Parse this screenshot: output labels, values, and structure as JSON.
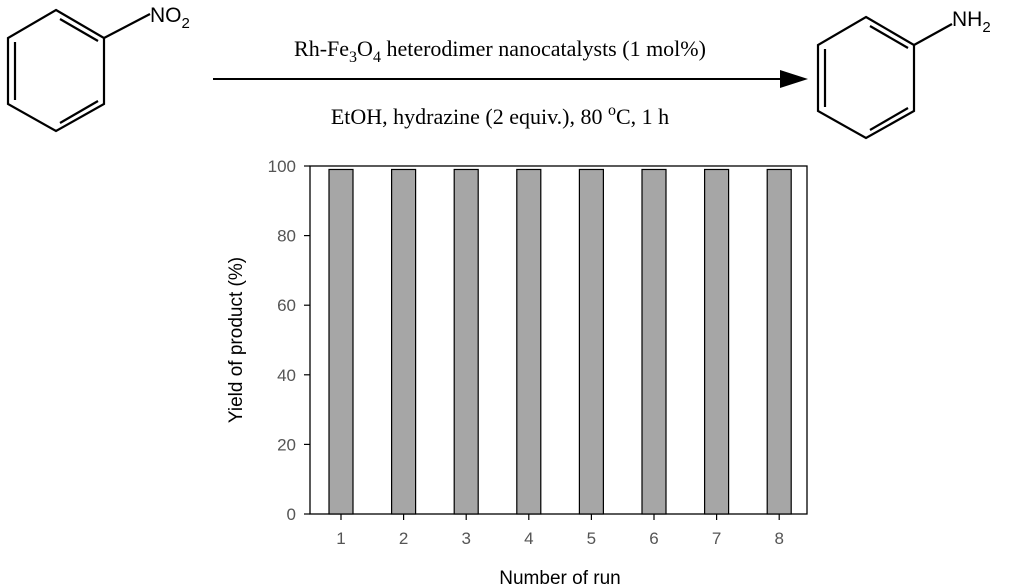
{
  "scheme": {
    "reactant": {
      "group_main": "NO",
      "group_sub": "2"
    },
    "product": {
      "group_main": "NH",
      "group_sub": "2"
    },
    "conditions_top": {
      "part1": "Rh-Fe",
      "sub1": "3",
      "part2": "O",
      "sub2": "4",
      "part3": " heterodimer nanocatalysts (1 mol%)"
    },
    "conditions_bottom": {
      "part1": "EtOH, hydrazine (2 equiv.), 80 ",
      "sup": "o",
      "part2": "C, 1 h"
    }
  },
  "chart_data": {
    "type": "bar",
    "categories": [
      "1",
      "2",
      "3",
      "4",
      "5",
      "6",
      "7",
      "8"
    ],
    "values": [
      99,
      99,
      99,
      99,
      99,
      99,
      99,
      99
    ],
    "xlabel": "Number of run",
    "ylabel": "Yield of product (%)",
    "ylim": [
      0,
      100
    ],
    "yticks": [
      0,
      20,
      40,
      60,
      80,
      100
    ],
    "grid": false,
    "legend": "none",
    "bar_color": "#a6a6a6",
    "bar_edge_color": "#000000"
  }
}
